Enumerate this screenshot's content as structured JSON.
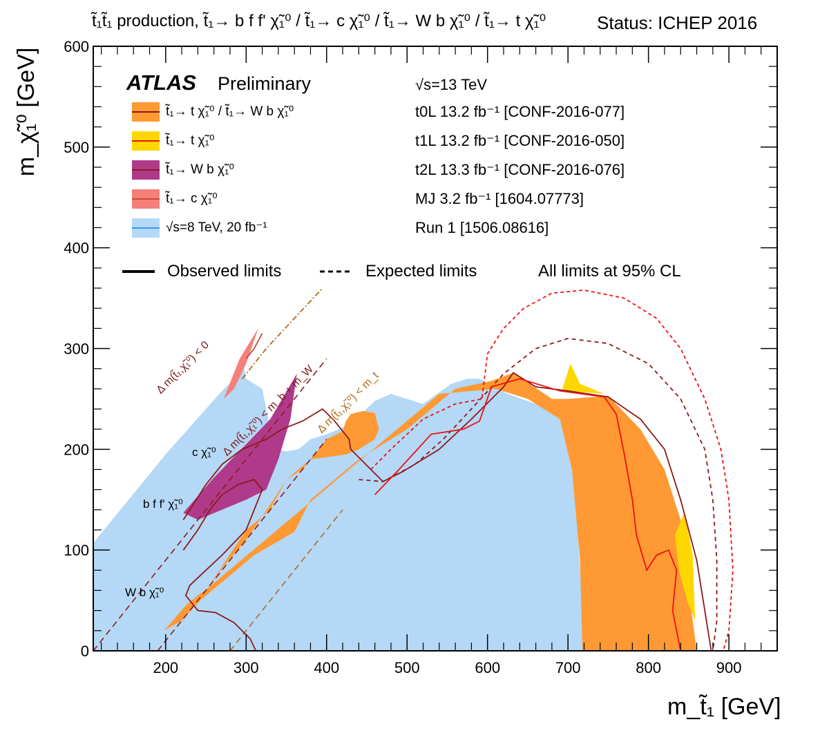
{
  "header": {
    "title": "t̃₁t̃₁ production, t̃₁→ b f f' χ̃₁⁰ / t̃₁→ c χ̃₁⁰ / t̃₁→ W b χ̃₁⁰ / t̃₁→ t χ̃₁⁰",
    "status": "Status: ICHEP 2016"
  },
  "legend": {
    "atlas": "ATLAS",
    "preliminary": "Preliminary",
    "sqrt_s": "√s=13 TeV",
    "entries": [
      {
        "label": "t̃₁→ t χ̃₁⁰ / t̃₁→ W b χ̃₁⁰",
        "fill": "#ff9933",
        "line": "#8b1a1a",
        "ref": "t0L 13.2 fb⁻¹ [CONF-2016-077]"
      },
      {
        "label": "t̃₁→ t χ̃₁⁰",
        "fill": "#ffd700",
        "line": "#ee1111",
        "ref": "t1L 13.2 fb⁻¹ [CONF-2016-050]"
      },
      {
        "label": "t̃₁→ W b χ̃₁⁰",
        "fill": "#b03a8a",
        "line": "#8b1a1a",
        "ref": "t2L 13.3 fb⁻¹ [CONF-2016-076]"
      },
      {
        "label": "t̃₁→ c χ̃₁⁰",
        "fill": "#f5807a",
        "line": "#c84a3a",
        "ref": "MJ   3.2 fb⁻¹ [1604.07773]"
      },
      {
        "label": "√s=8 TeV, 20 fb⁻¹",
        "fill": "#b4d8f5",
        "line": "#3399ee",
        "ref": "Run 1 [1506.08616]"
      }
    ],
    "observed": "Observed limits",
    "expected": "Expected limits",
    "cl_note": "All limits at 95% CL"
  },
  "annotations": {
    "dm0": "Δ m(t̃₁,χ̃₁⁰) < 0",
    "dm_bw": "Δ m(t̃₁,χ̃₁⁰) < m_b + m_W",
    "dm_t": "Δ m(t̃₁,χ̃₁⁰) < m_t",
    "c_chi": "c χ̃₁⁰",
    "bff_chi": "b f f' χ̃₁⁰",
    "wb_chi": "W b χ̃₁⁰"
  },
  "chart_data": {
    "type": "area",
    "xlabel": "m_t̃₁ [GeV]",
    "ylabel": "m_χ̃₁⁰ [GeV]",
    "xlim": [
      110,
      960
    ],
    "ylim": [
      0,
      600
    ],
    "xticks": [
      200,
      300,
      400,
      500,
      600,
      700,
      800,
      900
    ],
    "yticks": [
      0,
      100,
      200,
      300,
      400,
      500,
      600
    ],
    "colors": {
      "run1": "#b4d8f5",
      "t0L": "#ff9933",
      "t1L": "#ffd700",
      "t2L": "#b03a8a",
      "mj": "#f5807a",
      "dark_red": "#8b1a1a",
      "red": "#ee1111",
      "brown": "#b06a1a"
    },
    "regions": [
      {
        "name": "Run 1",
        "fill": "#b4d8f5",
        "points": [
          [
            110,
            107
          ],
          [
            200,
            195
          ],
          [
            270,
            258
          ],
          [
            287,
            271
          ],
          [
            292,
            280
          ],
          [
            295,
            290
          ],
          [
            300,
            270
          ],
          [
            310,
            265
          ],
          [
            320,
            260
          ],
          [
            335,
            200
          ],
          [
            350,
            198
          ],
          [
            365,
            200
          ],
          [
            380,
            210
          ],
          [
            400,
            215
          ],
          [
            430,
            225
          ],
          [
            460,
            248
          ],
          [
            480,
            255
          ],
          [
            520,
            245
          ],
          [
            555,
            265
          ],
          [
            575,
            270
          ],
          [
            590,
            270
          ],
          [
            625,
            255
          ],
          [
            660,
            245
          ],
          [
            700,
            230
          ],
          [
            710,
            150
          ],
          [
            715,
            80
          ],
          [
            720,
            0
          ],
          [
            200,
            0
          ],
          [
            150,
            0
          ],
          [
            110,
            0
          ]
        ]
      },
      {
        "name": "t0L",
        "fill": "#ff9933",
        "points": [
          [
            252,
            62
          ],
          [
            270,
            82
          ],
          [
            300,
            110
          ],
          [
            330,
            145
          ],
          [
            350,
            170
          ],
          [
            370,
            180
          ],
          [
            400,
            210
          ],
          [
            420,
            218
          ],
          [
            424,
            228
          ],
          [
            430,
            235
          ],
          [
            445,
            238
          ],
          [
            460,
            236
          ],
          [
            465,
            220
          ],
          [
            460,
            210
          ],
          [
            440,
            200
          ],
          [
            425,
            195
          ],
          [
            380,
            190
          ],
          [
            350,
            170
          ],
          [
            330,
            140
          ],
          [
            300,
            120
          ],
          [
            275,
            90
          ],
          [
            252,
            62
          ],
          [
            240,
            55
          ],
          [
            225,
            45
          ],
          [
            198,
            20
          ],
          [
            220,
            30
          ],
          [
            243,
            50
          ],
          [
            310,
            95
          ],
          [
            360,
            118
          ],
          [
            380,
            150
          ],
          [
            425,
            180
          ],
          [
            440,
            190
          ],
          [
            460,
            200
          ],
          [
            480,
            210
          ],
          [
            500,
            220
          ],
          [
            560,
            260
          ],
          [
            605,
            268
          ],
          [
            632,
            276
          ],
          [
            680,
            250
          ],
          [
            700,
            250
          ],
          [
            750,
            253
          ],
          [
            790,
            220
          ],
          [
            820,
            180
          ],
          [
            840,
            130
          ],
          [
            850,
            60
          ],
          [
            860,
            0
          ],
          [
            718,
            0
          ],
          [
            715,
            90
          ],
          [
            705,
            180
          ],
          [
            690,
            230
          ],
          [
            650,
            250
          ],
          [
            610,
            260
          ],
          [
            540,
            255
          ]
        ]
      },
      {
        "name": "t1L",
        "fill": "#ffd700",
        "points": [
          [
            693,
            260
          ],
          [
            703,
            285
          ],
          [
            715,
            265
          ],
          [
            745,
            255
          ],
          [
            700,
            258
          ]
        ]
      },
      {
        "name": "t1L-2",
        "fill": "#ffd700",
        "points": [
          [
            833,
            115
          ],
          [
            845,
            138
          ],
          [
            855,
            95
          ],
          [
            858,
            30
          ],
          [
            848,
            50
          ],
          [
            838,
            80
          ]
        ]
      },
      {
        "name": "t2L",
        "fill": "#b03a8a",
        "points": [
          [
            222,
            137
          ],
          [
            260,
            172
          ],
          [
            300,
            205
          ],
          [
            330,
            230
          ],
          [
            363,
            275
          ],
          [
            355,
            230
          ],
          [
            340,
            190
          ],
          [
            325,
            160
          ],
          [
            300,
            150
          ],
          [
            270,
            140
          ],
          [
            240,
            130
          ]
        ]
      },
      {
        "name": "MJ",
        "fill": "#f5807a",
        "points": [
          [
            272,
            250
          ],
          [
            292,
            290
          ],
          [
            315,
            320
          ],
          [
            300,
            285
          ],
          [
            285,
            260
          ]
        ]
      }
    ],
    "lines": [
      {
        "name": "t0L obs",
        "color": "#8b1a1a",
        "dash": "none",
        "points": [
          [
            222,
            130
          ],
          [
            250,
            165
          ],
          [
            270,
            185
          ],
          [
            295,
            200
          ],
          [
            325,
            210
          ],
          [
            345,
            220
          ],
          [
            370,
            228
          ],
          [
            395,
            240
          ],
          [
            410,
            228
          ],
          [
            428,
            210
          ],
          [
            430,
            200
          ],
          [
            455,
            180
          ],
          [
            470,
            168
          ],
          [
            495,
            178
          ],
          [
            540,
            200
          ],
          [
            580,
            230
          ],
          [
            620,
            262
          ],
          [
            632,
            276
          ],
          [
            660,
            262
          ],
          [
            700,
            258
          ],
          [
            750,
            252
          ],
          [
            790,
            230
          ],
          [
            820,
            200
          ],
          [
            840,
            150
          ],
          [
            860,
            90
          ],
          [
            870,
            40
          ],
          [
            878,
            0
          ]
        ]
      },
      {
        "name": "t0L exp",
        "color": "#8b1a1a",
        "dash": "6,5",
        "points": [
          [
            440,
            170
          ],
          [
            470,
            168
          ],
          [
            510,
            185
          ],
          [
            545,
            210
          ],
          [
            580,
            240
          ],
          [
            620,
            275
          ],
          [
            660,
            300
          ],
          [
            700,
            310
          ],
          [
            750,
            305
          ],
          [
            800,
            285
          ],
          [
            840,
            250
          ],
          [
            870,
            200
          ],
          [
            880,
            150
          ],
          [
            885,
            90
          ],
          [
            885,
            30
          ],
          [
            880,
            0
          ]
        ]
      },
      {
        "name": "t1L obs",
        "color": "#ee1111",
        "dash": "none",
        "points": [
          [
            460,
            155
          ],
          [
            490,
            180
          ],
          [
            530,
            215
          ],
          [
            570,
            220
          ],
          [
            590,
            228
          ],
          [
            605,
            262
          ],
          [
            640,
            270
          ],
          [
            690,
            258
          ],
          [
            745,
            252
          ],
          [
            760,
            235
          ],
          [
            770,
            195
          ],
          [
            780,
            150
          ],
          [
            785,
            115
          ],
          [
            798,
            80
          ],
          [
            810,
            95
          ],
          [
            825,
            100
          ],
          [
            835,
            80
          ],
          [
            830,
            40
          ],
          [
            840,
            0
          ]
        ]
      },
      {
        "name": "t1L exp",
        "color": "#ee1111",
        "dash": "5,4",
        "points": [
          [
            455,
            180
          ],
          [
            480,
            200
          ],
          [
            520,
            230
          ],
          [
            560,
            245
          ],
          [
            593,
            250
          ],
          [
            600,
            295
          ],
          [
            620,
            320
          ],
          [
            645,
            340
          ],
          [
            680,
            355
          ],
          [
            720,
            358
          ],
          [
            770,
            350
          ],
          [
            810,
            330
          ],
          [
            840,
            300
          ],
          [
            870,
            250
          ],
          [
            890,
            200
          ],
          [
            900,
            150
          ],
          [
            905,
            80
          ],
          [
            900,
            20
          ],
          [
            893,
            0
          ]
        ]
      },
      {
        "name": "t2L obs",
        "color": "#8b1a1a",
        "dash": "none",
        "points": [
          [
            222,
            100
          ],
          [
            240,
            120
          ],
          [
            255,
            140
          ],
          [
            270,
            155
          ],
          [
            290,
            165
          ],
          [
            310,
            170
          ],
          [
            320,
            160
          ],
          [
            300,
            120
          ],
          [
            270,
            95
          ],
          [
            250,
            80
          ],
          [
            230,
            65
          ],
          [
            225,
            55
          ],
          [
            240,
            40
          ],
          [
            262,
            38
          ],
          [
            285,
            28
          ],
          [
            305,
            12
          ],
          [
            312,
            0
          ]
        ]
      },
      {
        "name": "MJ obs",
        "color": "#c84a3a",
        "dash": "none",
        "points": [
          [
            300,
            290
          ],
          [
            310,
            300
          ],
          [
            320,
            315
          ]
        ]
      },
      {
        "name": "MJ exp",
        "color": "#b06a1a",
        "dash": "8,3,2,3",
        "points": [
          [
            295,
            270
          ],
          [
            325,
            300
          ],
          [
            360,
            330
          ],
          [
            395,
            360
          ]
        ]
      }
    ],
    "boundaries": [
      {
        "name": "dm0",
        "x": [
          110,
          400
        ],
        "y": [
          0,
          290
        ]
      },
      {
        "name": "dm_bw",
        "x": [
          190,
          400
        ],
        "y": [
          0,
          210
        ]
      },
      {
        "name": "dm_t",
        "x": [
          280,
          420
        ],
        "y": [
          0,
          140
        ]
      }
    ]
  }
}
